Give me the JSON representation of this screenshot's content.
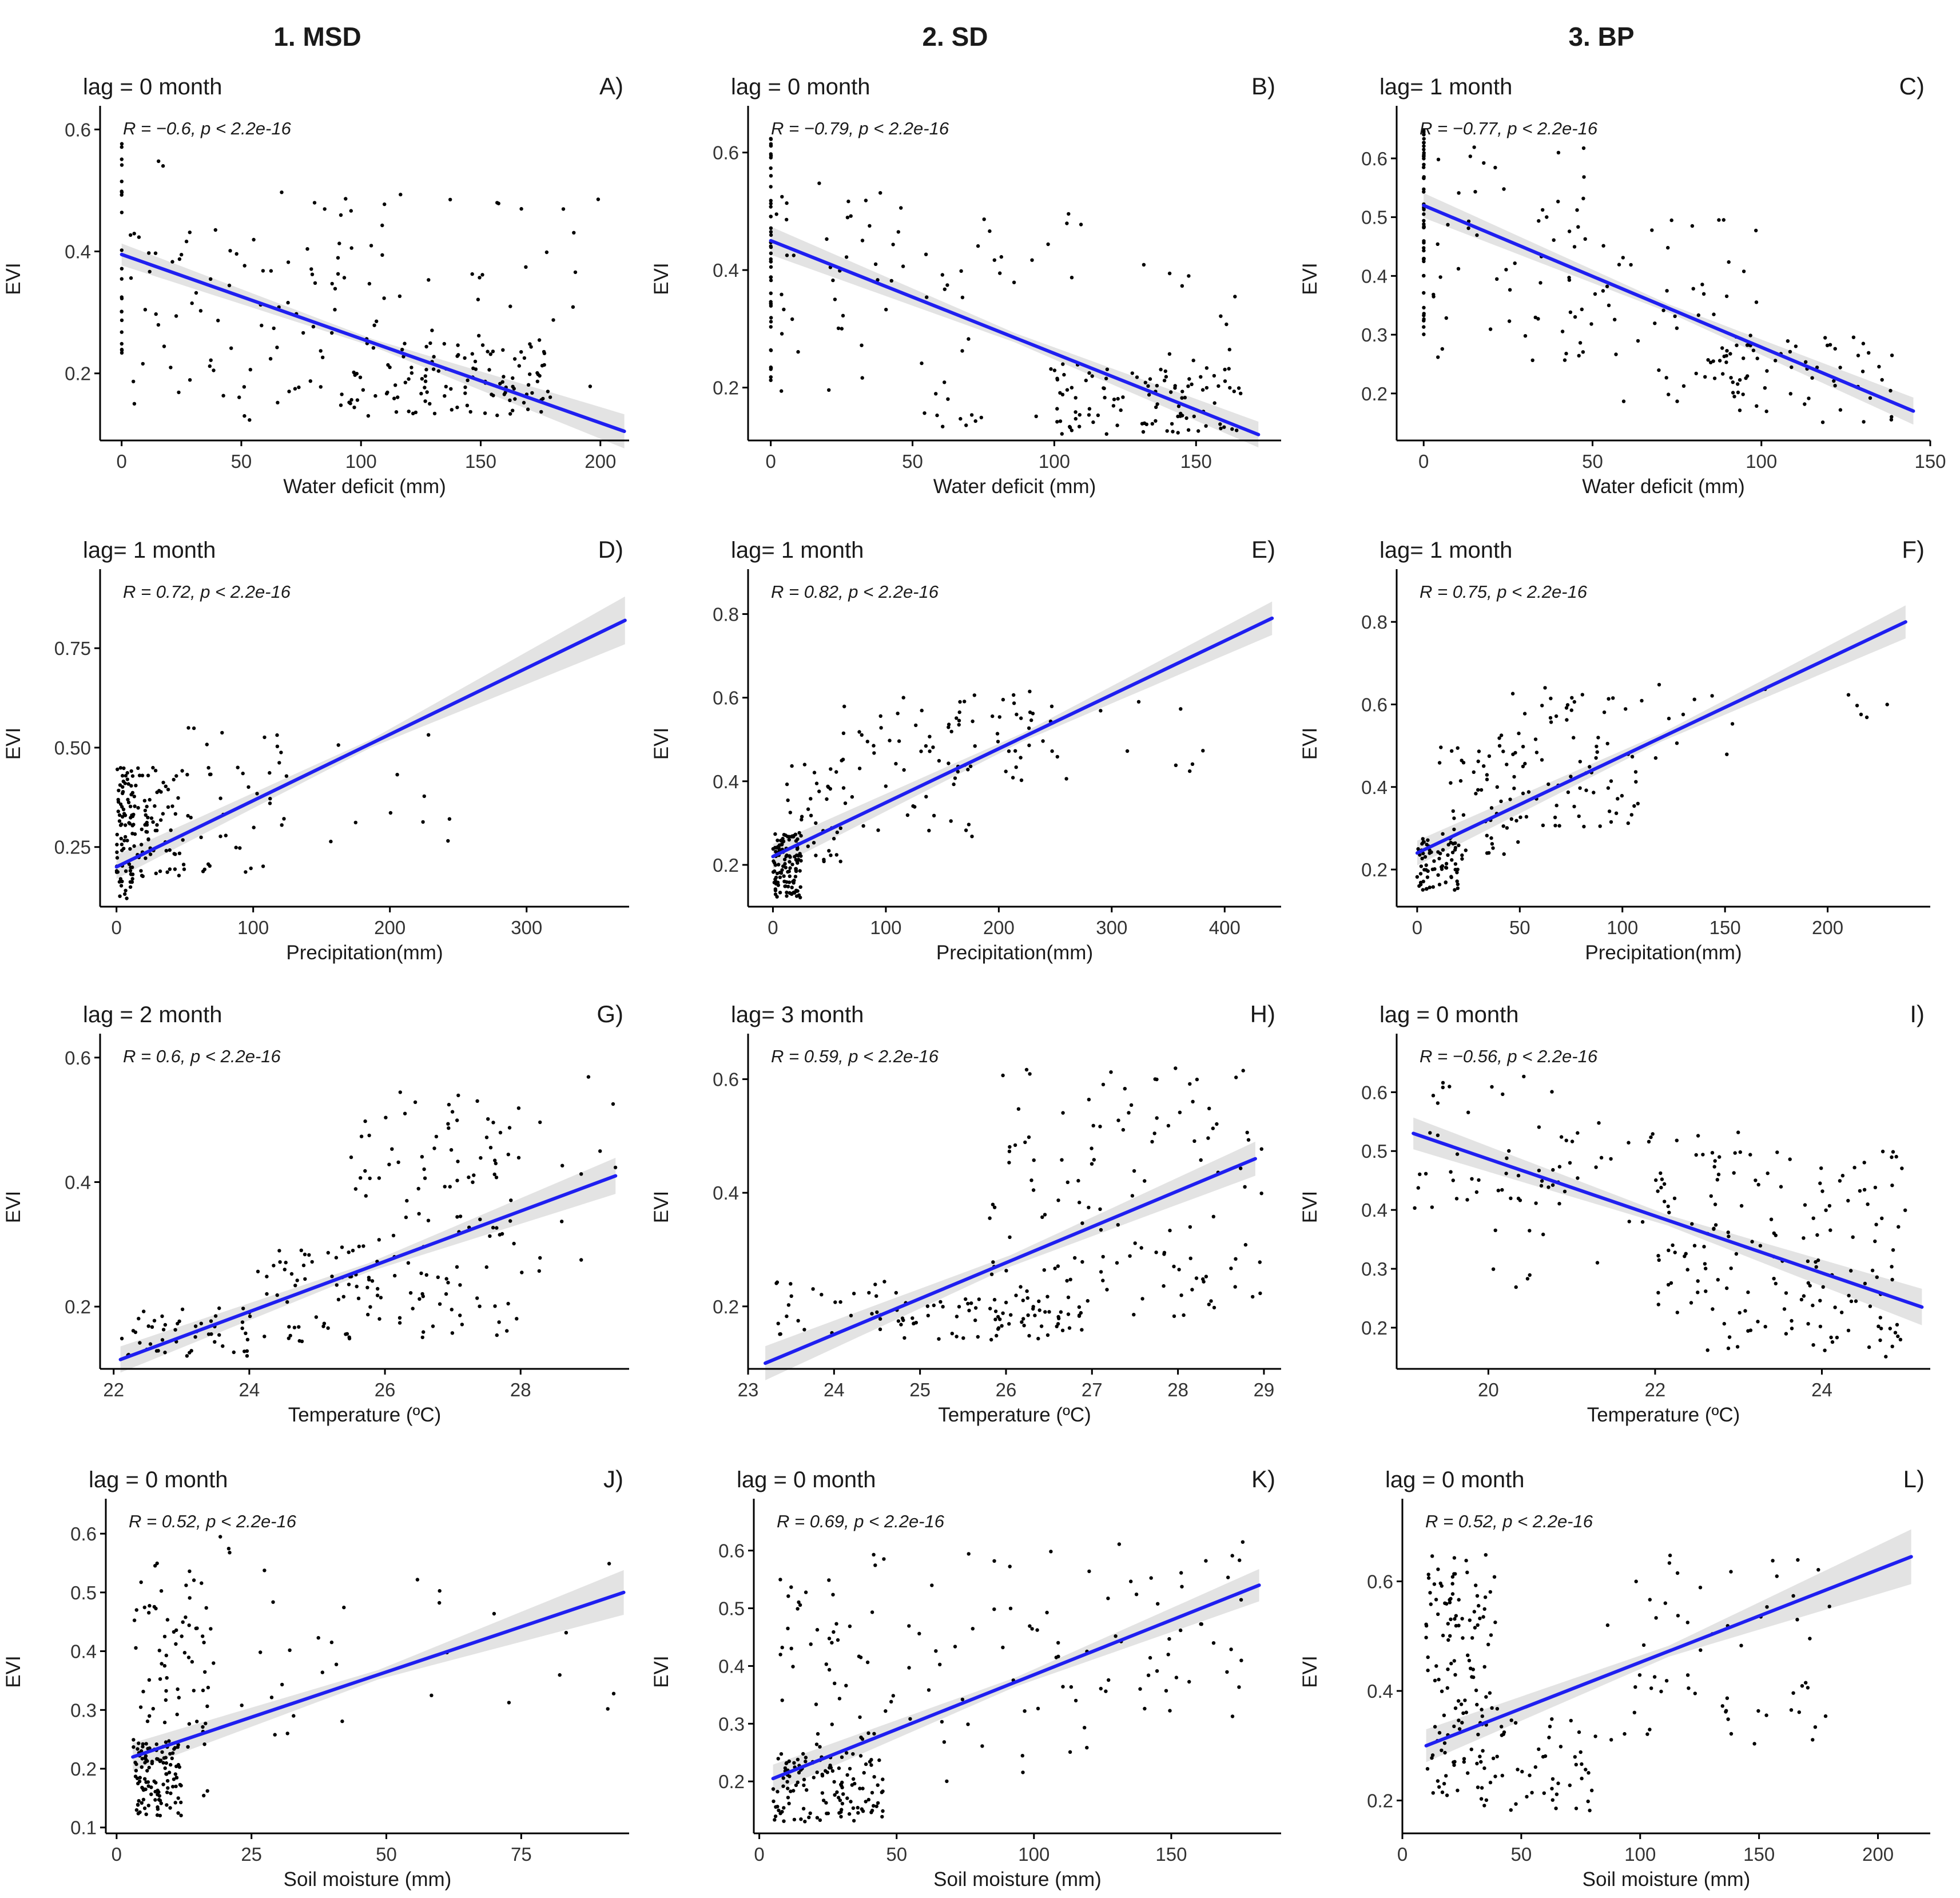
{
  "columns": [
    "1. MSD",
    "2. SD",
    "3. BP"
  ],
  "colors": {
    "line": "#1f1ff0",
    "band": "#d9d9d9",
    "points": "#000000"
  },
  "chart_data": [
    {
      "type": "scatter",
      "letter": "A)",
      "lag": "lag = 0 month",
      "stat": "R = −0.6, p < 2.2e-16",
      "xlabel": "Water deficit (mm)",
      "ylabel": "EVI",
      "xlim": [
        -9,
        212
      ],
      "ylim": [
        0.09,
        0.62
      ],
      "xticks": [
        0,
        50,
        100,
        150,
        200
      ],
      "yticks": [
        0.2,
        0.4,
        0.6
      ],
      "yprec": 1,
      "fit": [
        [
          0,
          0.395
        ],
        [
          210,
          0.105
        ]
      ],
      "band": [
        0.012,
        0.022
      ],
      "clusters": [
        [
          0,
          0.1,
          0.22,
          0.6,
          22,
          0.3
        ],
        [
          2,
          50,
          0.15,
          0.55,
          40,
          0.5
        ],
        [
          50,
          110,
          0.12,
          0.5,
          60,
          0.5
        ],
        [
          95,
          180,
          0.13,
          0.25,
          110,
          0.5
        ],
        [
          110,
          200,
          0.15,
          0.5,
          30,
          0.5
        ]
      ],
      "seed": 11
    },
    {
      "type": "scatter",
      "letter": "B)",
      "lag": "lag = 0 month",
      "stat": "R = −0.79, p < 2.2e-16",
      "xlabel": "Water deficit (mm)",
      "ylabel": "EVI",
      "xlim": [
        -8,
        180
      ],
      "ylim": [
        0.11,
        0.66
      ],
      "xticks": [
        0,
        50,
        100,
        150
      ],
      "yticks": [
        0.2,
        0.4,
        0.6
      ],
      "yprec": 1,
      "fit": [
        [
          0,
          0.45
        ],
        [
          172,
          0.12
        ]
      ],
      "band": [
        0.016,
        0.014
      ],
      "clusters": [
        [
          0,
          0.1,
          0.2,
          0.64,
          45,
          0.3
        ],
        [
          2,
          50,
          0.18,
          0.55,
          40,
          0.5
        ],
        [
          50,
          110,
          0.13,
          0.5,
          40,
          0.5
        ],
        [
          100,
          172,
          0.12,
          0.24,
          100,
          0.5
        ],
        [
          130,
          170,
          0.2,
          0.42,
          10,
          0.5
        ]
      ],
      "seed": 23
    },
    {
      "type": "scatter",
      "letter": "C)",
      "lag": "lag= 1 month",
      "stat": "R = −0.77, p < 2.2e-16",
      "xlabel": "Water deficit (mm)",
      "ylabel": "EVI",
      "xlim": [
        -8,
        150
      ],
      "ylim": [
        0.12,
        0.67
      ],
      "xticks": [
        0,
        50,
        100,
        150
      ],
      "yticks": [
        0.2,
        0.3,
        0.4,
        0.5,
        0.6
      ],
      "yprec": 1,
      "fit": [
        [
          0,
          0.52
        ],
        [
          145,
          0.17
        ]
      ],
      "band": [
        0.014,
        0.016
      ],
      "clusters": [
        [
          0,
          0.1,
          0.3,
          0.65,
          50,
          0.3
        ],
        [
          2,
          50,
          0.25,
          0.62,
          50,
          0.5
        ],
        [
          40,
          100,
          0.18,
          0.5,
          60,
          0.5
        ],
        [
          80,
          140,
          0.15,
          0.3,
          60,
          0.5
        ]
      ],
      "seed": 37
    },
    {
      "type": "scatter",
      "letter": "D)",
      "lag": "lag= 1 month",
      "stat": "R = 0.72, p < 2.2e-16",
      "xlabel": "Precipitation(mm)",
      "ylabel": "EVI",
      "xlim": [
        -12,
        375
      ],
      "ylim": [
        0.1,
        0.92
      ],
      "xticks": [
        0,
        100,
        200,
        300
      ],
      "yticks": [
        0.25,
        0.5,
        0.75
      ],
      "yprec": 2,
      "fit": [
        [
          0,
          0.2
        ],
        [
          372,
          0.82
        ]
      ],
      "band": [
        0.02,
        0.05
      ],
      "clusters": [
        [
          0,
          12,
          0.12,
          0.45,
          80,
          0.5
        ],
        [
          10,
          50,
          0.15,
          0.45,
          80,
          0.5
        ],
        [
          50,
          130,
          0.18,
          0.55,
          40,
          0.5
        ],
        [
          130,
          250,
          0.25,
          0.6,
          10,
          0.5
        ]
      ],
      "seed": 41
    },
    {
      "type": "scatter",
      "letter": "E)",
      "lag": "lag= 1 month",
      "stat": "R = 0.82, p < 2.2e-16",
      "xlabel": "Precipitation(mm)",
      "ylabel": "EVI",
      "xlim": [
        -22,
        450
      ],
      "ylim": [
        0.1,
        0.88
      ],
      "xticks": [
        0,
        100,
        200,
        300,
        400
      ],
      "yticks": [
        0.2,
        0.4,
        0.6,
        0.8
      ],
      "yprec": 1,
      "fit": [
        [
          0,
          0.22
        ],
        [
          442,
          0.79
        ]
      ],
      "band": [
        0.02,
        0.03
      ],
      "clusters": [
        [
          0,
          25,
          0.12,
          0.28,
          120,
          0.5
        ],
        [
          10,
          60,
          0.2,
          0.45,
          40,
          0.5
        ],
        [
          60,
          180,
          0.25,
          0.6,
          50,
          0.5
        ],
        [
          150,
          260,
          0.4,
          0.62,
          40,
          0.5
        ],
        [
          270,
          420,
          0.4,
          0.6,
          8,
          0.5
        ]
      ],
      "seed": 53
    },
    {
      "type": "scatter",
      "letter": "F)",
      "lag": "lag= 1 month",
      "stat": "R = 0.75, p < 2.2e-16",
      "xlabel": "Precipitation(mm)",
      "ylabel": "EVI",
      "xlim": [
        -10,
        250
      ],
      "ylim": [
        0.11,
        0.9
      ],
      "xticks": [
        0,
        50,
        100,
        150,
        200
      ],
      "yticks": [
        0.2,
        0.4,
        0.6,
        0.8
      ],
      "yprec": 1,
      "fit": [
        [
          0,
          0.24
        ],
        [
          238,
          0.8
        ]
      ],
      "band": [
        0.02,
        0.03
      ],
      "clusters": [
        [
          0,
          20,
          0.15,
          0.28,
          70,
          0.5
        ],
        [
          10,
          50,
          0.22,
          0.5,
          50,
          0.5
        ],
        [
          40,
          110,
          0.3,
          0.65,
          80,
          0.5
        ],
        [
          110,
          240,
          0.45,
          0.66,
          15,
          0.5
        ]
      ],
      "seed": 67
    },
    {
      "type": "scatter",
      "letter": "G)",
      "lag": "lag = 2 month",
      "stat": "R = 0.6, p < 2.2e-16",
      "xlabel": "Temperature (ºC)",
      "ylabel": "EVI",
      "xlim": [
        21.8,
        29.6
      ],
      "ylim": [
        0.1,
        0.62
      ],
      "xticks": [
        22,
        24,
        26,
        28
      ],
      "yticks": [
        0.2,
        0.4,
        0.6
      ],
      "yprec": 1,
      "fit": [
        [
          22.1,
          0.115
        ],
        [
          29.4,
          0.41
        ]
      ],
      "band": [
        0.014,
        0.022
      ],
      "clusters": [
        [
          22.1,
          24,
          0.12,
          0.2,
          50,
          0.5
        ],
        [
          24,
          26,
          0.14,
          0.3,
          60,
          0.5
        ],
        [
          25.5,
          28,
          0.15,
          0.55,
          110,
          0.5
        ],
        [
          27.5,
          29.5,
          0.25,
          0.58,
          15,
          0.5
        ]
      ],
      "seed": 71
    },
    {
      "type": "scatter",
      "letter": "H)",
      "lag": "lag= 3 month",
      "stat": "R = 0.59, p < 2.2e-16",
      "xlabel": "Temperature (ºC)",
      "ylabel": "EVI",
      "xlim": [
        23.0,
        29.2
      ],
      "ylim": [
        0.09,
        0.66
      ],
      "xticks": [
        23,
        24,
        25,
        26,
        27,
        28,
        29
      ],
      "yticks": [
        0.2,
        0.4,
        0.6
      ],
      "yprec": 1,
      "fit": [
        [
          23.2,
          0.1
        ],
        [
          28.9,
          0.46
        ]
      ],
      "band": [
        0.02,
        0.02
      ],
      "clusters": [
        [
          23.3,
          25,
          0.15,
          0.25,
          30,
          0.5
        ],
        [
          24.5,
          27,
          0.14,
          0.22,
          70,
          0.5
        ],
        [
          25.8,
          29,
          0.18,
          0.62,
          130,
          0.5
        ]
      ],
      "seed": 83
    },
    {
      "type": "scatter",
      "letter": "I)",
      "lag": "lag = 0 month",
      "stat": "R = −0.56, p < 2.2e-16",
      "xlabel": "Temperature (ºC)",
      "ylabel": "EVI",
      "xlim": [
        18.9,
        25.3
      ],
      "ylim": [
        0.13,
        0.68
      ],
      "xticks": [
        20,
        22,
        24
      ],
      "yticks": [
        0.2,
        0.3,
        0.4,
        0.5,
        0.6
      ],
      "yprec": 1,
      "fit": [
        [
          19.1,
          0.53
        ],
        [
          25.2,
          0.235
        ]
      ],
      "band": [
        0.018,
        0.022
      ],
      "clusters": [
        [
          19.1,
          21,
          0.4,
          0.65,
          40,
          0.5
        ],
        [
          20,
          23,
          0.25,
          0.55,
          60,
          0.5
        ],
        [
          22,
          25,
          0.15,
          0.5,
          140,
          0.5
        ]
      ],
      "seed": 97
    },
    {
      "type": "scatter",
      "letter": "J)",
      "lag": "lag = 0 month",
      "stat": "R = 0.52, p < 2.2e-16",
      "xlabel": "Soil moisture (mm)",
      "ylabel": "EVI",
      "xlim": [
        -2,
        95
      ],
      "ylim": [
        0.09,
        0.64
      ],
      "xticks": [
        0,
        25,
        50,
        75
      ],
      "yticks": [
        0.1,
        0.2,
        0.3,
        0.4,
        0.5,
        0.6
      ],
      "yprec": 1,
      "fit": [
        [
          3,
          0.22
        ],
        [
          94,
          0.5
        ]
      ],
      "band": [
        0.016,
        0.03
      ],
      "clusters": [
        [
          3,
          12,
          0.12,
          0.25,
          110,
          0.5
        ],
        [
          3,
          18,
          0.2,
          0.55,
          70,
          0.5
        ],
        [
          15,
          45,
          0.15,
          0.6,
          25,
          0.5
        ],
        [
          55,
          94,
          0.3,
          0.58,
          12,
          0.5
        ]
      ],
      "seed": 101
    },
    {
      "type": "scatter",
      "letter": "K)",
      "lag": "lag = 0 month",
      "stat": "R = 0.69, p < 2.2e-16",
      "xlabel": "Soil moisture (mm)",
      "ylabel": "EVI",
      "xlim": [
        -2,
        190
      ],
      "ylim": [
        0.11,
        0.67
      ],
      "xticks": [
        0,
        50,
        100,
        150
      ],
      "yticks": [
        0.2,
        0.3,
        0.4,
        0.5,
        0.6
      ],
      "yprec": 1,
      "fit": [
        [
          5,
          0.205
        ],
        [
          182,
          0.54
        ]
      ],
      "band": [
        0.016,
        0.02
      ],
      "clusters": [
        [
          5,
          45,
          0.13,
          0.25,
          130,
          0.5
        ],
        [
          5,
          40,
          0.25,
          0.55,
          40,
          0.5
        ],
        [
          40,
          120,
          0.2,
          0.6,
          50,
          0.5
        ],
        [
          120,
          182,
          0.3,
          0.63,
          40,
          0.5
        ]
      ],
      "seed": 113
    },
    {
      "type": "scatter",
      "letter": "L)",
      "lag": "lag = 0 month",
      "stat": "R = 0.52, p < 2.2e-16",
      "xlabel": "Soil moisture (mm)",
      "ylabel": "EVI",
      "xlim": [
        0,
        222
      ],
      "ylim": [
        0.14,
        0.73
      ],
      "xticks": [
        0,
        50,
        100,
        150,
        200
      ],
      "yticks": [
        0.2,
        0.4,
        0.6
      ],
      "yprec": 1,
      "fit": [
        [
          10,
          0.3
        ],
        [
          214,
          0.645
        ]
      ],
      "band": [
        0.02,
        0.04
      ],
      "clusters": [
        [
          10,
          40,
          0.2,
          0.65,
          130,
          0.5
        ],
        [
          30,
          80,
          0.18,
          0.35,
          50,
          0.5
        ],
        [
          80,
          180,
          0.3,
          0.65,
          60,
          0.5
        ]
      ],
      "seed": 127
    }
  ]
}
